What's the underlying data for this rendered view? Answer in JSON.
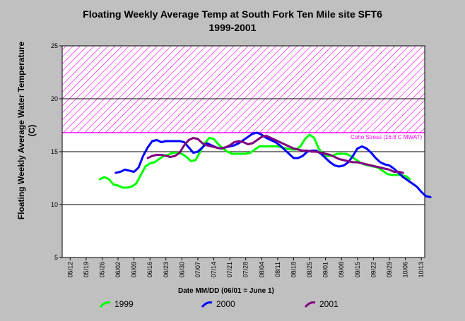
{
  "chart_data": {
    "type": "line",
    "title": "Floating Weekly Average Temp at South Fork Ten Mile site SFT6",
    "subtitle": "1999-2001",
    "xlabel": "Date MM/DD (06/01 = June 1)",
    "ylabel": "Floating Weekly Average Water Temperature (C)",
    "ylim": [
      5,
      25
    ],
    "yticks": [
      "5",
      "10",
      "15",
      "20",
      "25"
    ],
    "xticks": [
      "05/12",
      "05/19",
      "05/26",
      "06/02",
      "06/09",
      "06/16",
      "06/23",
      "06/30",
      "07/07",
      "07/14",
      "07/21",
      "07/28",
      "08/04",
      "08/11",
      "08/18",
      "08/25",
      "09/01",
      "09/08",
      "09/15",
      "09/22",
      "09/29",
      "10/06",
      "10/13"
    ],
    "stress_zone": {
      "from": 16.8,
      "to": 25,
      "label": "Coho Stress (16.8 C MWAT)",
      "color": "#ff00ff"
    },
    "series": [
      {
        "name": "1999",
        "color": "#00ff00",
        "x": [
          "05/25",
          "05/27",
          "05/29",
          "05/31",
          "06/02",
          "06/04",
          "06/06",
          "06/08",
          "06/10",
          "06/12",
          "06/14",
          "06/16",
          "06/18",
          "06/20",
          "06/22",
          "06/24",
          "06/26",
          "06/28",
          "06/30",
          "07/02",
          "07/04",
          "07/06",
          "07/08",
          "07/10",
          "07/12",
          "07/14",
          "07/16",
          "07/18",
          "07/20",
          "07/22",
          "07/24",
          "07/26",
          "07/28",
          "07/30",
          "08/01",
          "08/03",
          "08/05",
          "08/07",
          "08/09",
          "08/11",
          "08/13",
          "08/15",
          "08/17",
          "08/19",
          "08/21",
          "08/23",
          "08/25",
          "08/27",
          "08/29",
          "08/31",
          "09/02",
          "09/04",
          "09/06",
          "09/08",
          "09/10",
          "09/12",
          "09/14",
          "09/16",
          "09/18",
          "09/20",
          "09/22",
          "09/24",
          "09/26",
          "09/28",
          "09/30",
          "10/02",
          "10/04",
          "10/06",
          "10/08"
        ],
        "y": [
          12.4,
          12.6,
          12.4,
          11.9,
          11.8,
          11.6,
          11.6,
          11.7,
          12.0,
          12.8,
          13.6,
          13.9,
          14.0,
          14.3,
          14.6,
          14.7,
          14.9,
          14.9,
          14.8,
          14.5,
          14.1,
          14.2,
          15.0,
          15.8,
          16.3,
          16.2,
          15.7,
          15.3,
          15.0,
          14.8,
          14.8,
          14.8,
          14.8,
          14.9,
          15.2,
          15.5,
          15.5,
          15.5,
          15.5,
          15.5,
          15.4,
          15.3,
          15.2,
          15.2,
          15.5,
          16.2,
          16.6,
          16.3,
          15.3,
          14.7,
          14.6,
          14.6,
          14.8,
          14.8,
          14.8,
          14.6,
          14.3,
          14.0,
          13.8,
          13.7,
          13.6,
          13.5,
          13.2,
          12.9,
          12.8,
          12.8,
          12.8,
          12.7,
          12.4
        ]
      },
      {
        "name": "2000",
        "color": "#0000ff",
        "x": [
          "06/01",
          "06/03",
          "06/05",
          "06/07",
          "06/09",
          "06/11",
          "06/13",
          "06/15",
          "06/17",
          "06/19",
          "06/21",
          "06/23",
          "06/25",
          "06/27",
          "06/29",
          "07/01",
          "07/03",
          "07/05",
          "07/07",
          "07/09",
          "07/11",
          "07/13",
          "07/15",
          "07/17",
          "07/19",
          "07/21",
          "07/23",
          "07/25",
          "07/27",
          "07/29",
          "07/31",
          "08/02",
          "08/04",
          "08/06",
          "08/08",
          "08/10",
          "08/12",
          "08/14",
          "08/16",
          "08/18",
          "08/20",
          "08/22",
          "08/24",
          "08/26",
          "08/28",
          "08/30",
          "09/01",
          "09/03",
          "09/05",
          "09/07",
          "09/09",
          "09/11",
          "09/13",
          "09/15",
          "09/17",
          "09/19",
          "09/21",
          "09/23",
          "09/25",
          "09/27",
          "09/29",
          "10/01",
          "10/03",
          "10/05",
          "10/07",
          "10/09",
          "10/11",
          "10/13",
          "10/15",
          "10/17"
        ],
        "y": [
          13.0,
          13.1,
          13.3,
          13.2,
          13.1,
          13.5,
          14.6,
          15.4,
          16.0,
          16.1,
          15.9,
          16.0,
          16.0,
          16.0,
          16.0,
          15.9,
          15.4,
          14.9,
          15.0,
          15.4,
          15.8,
          15.6,
          15.4,
          15.3,
          15.4,
          15.5,
          15.6,
          15.8,
          16.1,
          16.4,
          16.7,
          16.8,
          16.6,
          16.3,
          16.1,
          15.9,
          15.6,
          15.2,
          14.8,
          14.4,
          14.4,
          14.6,
          15.0,
          15.1,
          15.1,
          14.8,
          14.4,
          14.0,
          13.7,
          13.6,
          13.7,
          14.0,
          14.6,
          15.3,
          15.5,
          15.3,
          14.9,
          14.4,
          14.0,
          13.8,
          13.7,
          13.4,
          13.0,
          12.6,
          12.3,
          12.0,
          11.7,
          11.2,
          10.8,
          10.7
        ]
      },
      {
        "name": "2001",
        "color": "#800080",
        "x": [
          "06/15",
          "06/17",
          "06/19",
          "06/21",
          "06/23",
          "06/25",
          "06/27",
          "06/29",
          "07/01",
          "07/03",
          "07/05",
          "07/07",
          "07/09",
          "07/11",
          "07/13",
          "07/15",
          "07/17",
          "07/19",
          "07/21",
          "07/23",
          "07/25",
          "07/27",
          "07/29",
          "07/31",
          "08/02",
          "08/04",
          "08/06",
          "08/08",
          "08/10",
          "08/12",
          "08/14",
          "08/16",
          "08/18",
          "08/20",
          "08/22",
          "08/24",
          "08/26",
          "08/28",
          "08/30",
          "09/01",
          "09/03",
          "09/05",
          "09/07",
          "09/09",
          "09/11",
          "09/13",
          "09/15",
          "09/17",
          "09/19",
          "09/21",
          "09/23",
          "09/25",
          "09/27",
          "09/29",
          "10/01",
          "10/03",
          "10/05"
        ],
        "y": [
          14.4,
          14.6,
          14.7,
          14.7,
          14.6,
          14.5,
          14.6,
          14.9,
          15.6,
          16.1,
          16.3,
          16.2,
          15.8,
          15.6,
          15.5,
          15.4,
          15.3,
          15.4,
          15.6,
          15.9,
          16.0,
          15.9,
          15.7,
          15.8,
          16.1,
          16.4,
          16.5,
          16.3,
          16.1,
          15.9,
          15.7,
          15.5,
          15.3,
          15.2,
          15.1,
          15.1,
          15.0,
          15.0,
          14.9,
          14.8,
          14.7,
          14.5,
          14.3,
          14.2,
          14.1,
          14.0,
          14.0,
          13.9,
          13.8,
          13.7,
          13.6,
          13.5,
          13.4,
          13.3,
          13.1,
          13.1,
          13.0
        ]
      }
    ],
    "legend_position": "bottom",
    "grid": "horizontal"
  }
}
